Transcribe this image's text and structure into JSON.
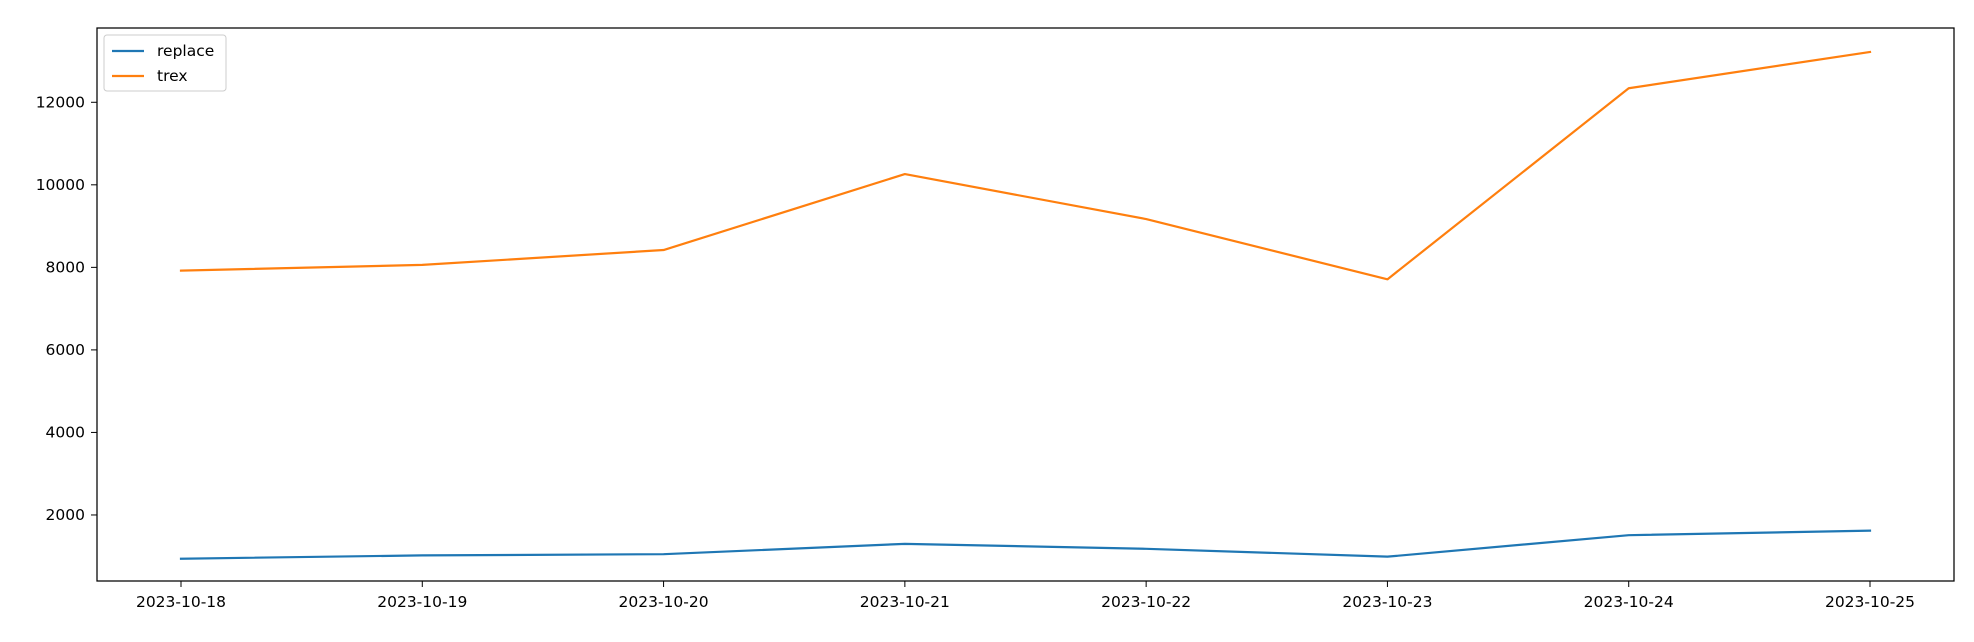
{
  "chart_data": {
    "type": "line",
    "title": "",
    "xlabel": "",
    "ylabel": "",
    "categories": [
      "2023-10-18",
      "2023-10-19",
      "2023-10-20",
      "2023-10-21",
      "2023-10-22",
      "2023-10-23",
      "2023-10-24",
      "2023-10-25"
    ],
    "series": [
      {
        "name": "replace",
        "color": "#1f77b4",
        "values": [
          940,
          1020,
          1050,
          1300,
          1180,
          990,
          1510,
          1620
        ]
      },
      {
        "name": "trex",
        "color": "#ff7f0e",
        "values": [
          7920,
          8060,
          8420,
          10260,
          9170,
          7710,
          12340,
          13220
        ]
      }
    ],
    "y_ticks": [
      2000,
      4000,
      6000,
      8000,
      10000,
      12000
    ],
    "ylim": [
      400,
      13800
    ],
    "grid": false,
    "legend_position": "top-left"
  }
}
